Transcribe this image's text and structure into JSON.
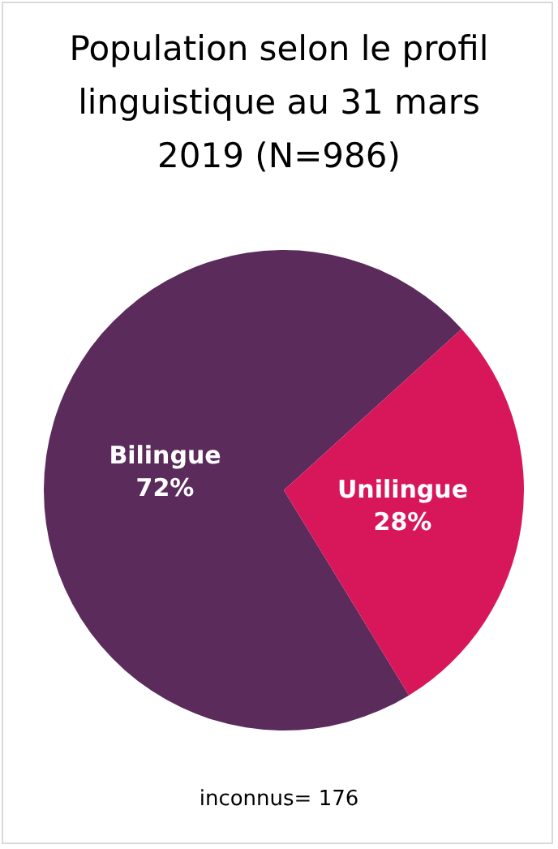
{
  "chart_data": {
    "type": "pie",
    "title": "Population selon le profil linguistique au 31 mars 2019 (N=986)",
    "categories": [
      "Bilingue",
      "Unilingue"
    ],
    "values": [
      72,
      28
    ],
    "colors": [
      "#5b2b5b",
      "#d8165a"
    ],
    "value_labels": [
      "72%",
      "28%"
    ],
    "legend": false,
    "annotations": [
      "inconnus= 176"
    ]
  }
}
